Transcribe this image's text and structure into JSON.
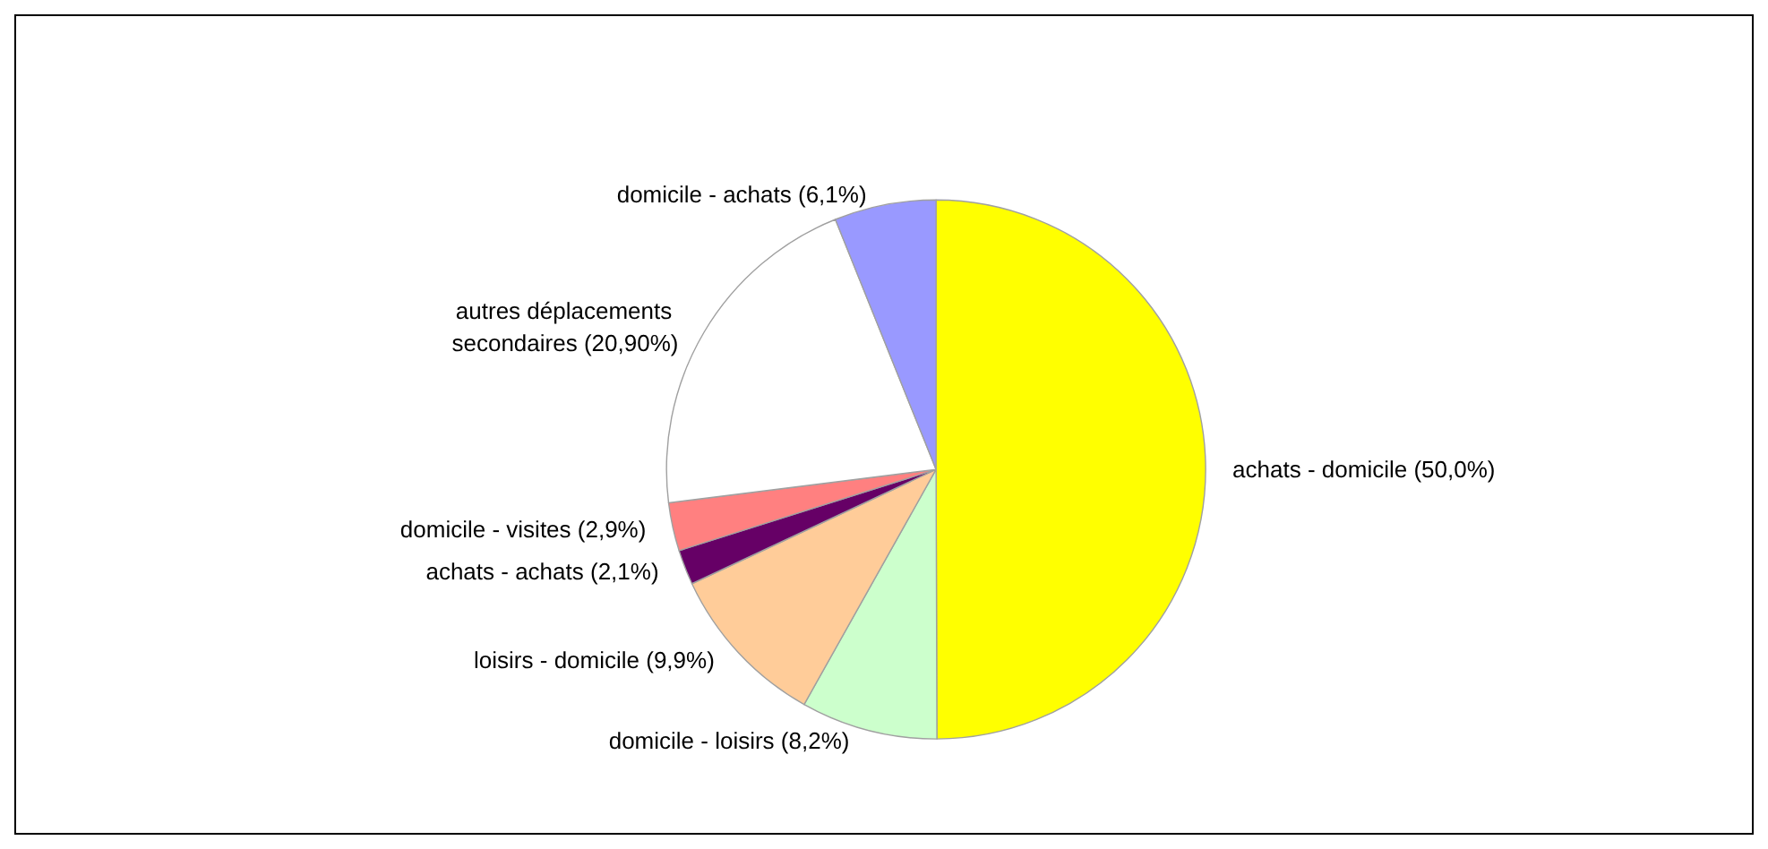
{
  "chart_data": {
    "type": "pie",
    "categories": [
      "achats - domicile",
      "domicile - loisirs",
      "loisirs - domicile",
      "achats - achats",
      "domicile - visites",
      "autres déplacements secondaires",
      "domicile - achats"
    ],
    "values": [
      50.0,
      8.2,
      9.9,
      2.1,
      2.9,
      20.9,
      6.1
    ],
    "value_labels": [
      "(50,0%)",
      "(8,2%)",
      "(9,9%)",
      "(2,1%)",
      "(2,9%)",
      "(20,90%)",
      "(6,1%)"
    ],
    "colors": [
      "#ffff00",
      "#ccffcc",
      "#ffcc99",
      "#660066",
      "#ff8080",
      "#ffffff",
      "#9999ff"
    ],
    "legend": false
  }
}
